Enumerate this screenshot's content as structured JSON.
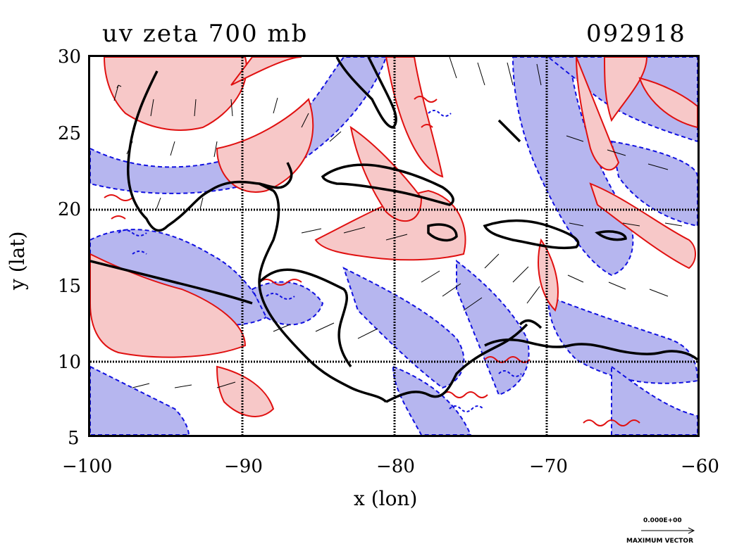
{
  "title_left": "uv zeta 700 mb",
  "title_right": "092918",
  "xlabel": "x (lon)",
  "ylabel": "y (lat)",
  "x_ticks": [
    "−100",
    "−90",
    "−80",
    "−70",
    "−60"
  ],
  "y_ticks": [
    "30",
    "25",
    "20",
    "15",
    "10",
    "5"
  ],
  "ref_vector_value": "0.000E+00",
  "ref_vector_label": "MAXIMUM VECTOR",
  "colors": {
    "positive_fill": "#f7c8c8",
    "positive_line": "#e01010",
    "negative_fill": "#b6b6ef",
    "negative_line": "#1010e0",
    "coast": "#000000"
  }
}
